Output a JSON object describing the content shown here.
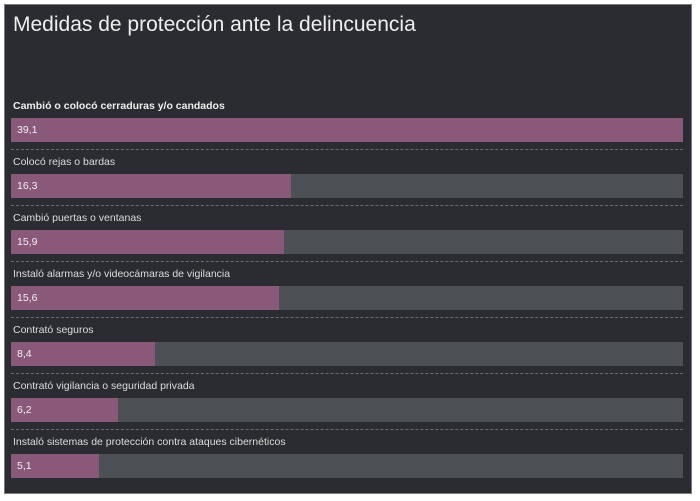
{
  "colors": {
    "panel_background": "#2b2c31",
    "bar_fill": "#8a5878",
    "bar_track": "#4d5055",
    "text": "#eeeeee"
  },
  "chart_data": {
    "type": "bar",
    "orientation": "horizontal",
    "title": "Medidas de protección ante la delincuencia",
    "xlim": [
      0,
      39.1
    ],
    "categories": [
      "Cambió o colocó cerraduras y/o candados",
      "Colocó rejas o bardas",
      "Cambió puertas o ventanas",
      "Instaló alarmas y/o videocámaras de vigilancia",
      "Contrató seguros",
      "Contrató vigilancia o seguridad privada",
      "Instaló sistemas de protección contra ataques cibernéticos"
    ],
    "values": [
      39.1,
      16.3,
      15.9,
      15.6,
      8.4,
      6.2,
      5.1
    ],
    "value_labels": [
      "39,1",
      "16,3",
      "15,9",
      "15,6",
      "8,4",
      "6,2",
      "5,1"
    ]
  }
}
